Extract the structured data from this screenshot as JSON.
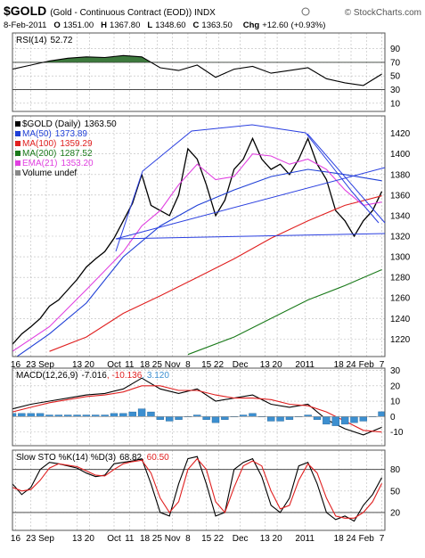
{
  "header": {
    "symbol": "$GOLD",
    "description": "(Gold - Continuous Contract (EOD)) INDX",
    "source": "© StockCharts.com",
    "date": "8-Feb-2011",
    "quote": [
      {
        "key": "O",
        "value": 1351,
        "label": "1351.00"
      },
      {
        "key": "H",
        "value": 1367.8,
        "label": "1367.80"
      },
      {
        "key": "L",
        "value": 1348.6,
        "label": "1348.60"
      },
      {
        "key": "C",
        "value": 1363.5,
        "label": "1363.50"
      }
    ],
    "change": {
      "key": "Chg",
      "value": 12.6,
      "label": "+12.60",
      "percent": {
        "value": 0.93,
        "label": "(+0.93%)"
      }
    }
  },
  "chart_data": [
    {
      "type": "line",
      "title": "RSI(14)",
      "xlim": [
        0,
        121
      ],
      "ylim": [
        -2,
        113
      ],
      "yticks": [
        10,
        30,
        50,
        70,
        90
      ],
      "levels": [
        30,
        70
      ],
      "grid": true,
      "series": [
        {
          "color": "#000000",
          "fill": "#3d7a3d",
          "fill_above": 70,
          "x": [
            0,
            6,
            12,
            18,
            24,
            30,
            36,
            42,
            48,
            54,
            60,
            66,
            72,
            78,
            84,
            90,
            96,
            102,
            108,
            114,
            120
          ],
          "values": [
            60,
            66,
            72,
            76,
            78,
            77,
            80,
            78,
            62,
            58,
            66,
            48,
            60,
            64,
            54,
            58,
            62,
            46,
            40,
            36,
            52.72
          ]
        }
      ]
    },
    {
      "type": "line",
      "xlim": [
        0,
        121
      ],
      "ylim": [
        1203,
        1437
      ],
      "grid": true,
      "yticks": [
        1220,
        1240,
        1260,
        1280,
        1300,
        1320,
        1340,
        1360,
        1380,
        1400,
        1420
      ],
      "xticks": [
        {
          "value": 1,
          "label": "16"
        },
        {
          "value": 6,
          "label": "23"
        },
        {
          "value": 11,
          "label": "Sep"
        },
        {
          "value": 21,
          "label": "13"
        },
        {
          "value": 25,
          "label": "20"
        },
        {
          "value": 33,
          "label": "Oct"
        },
        {
          "value": 38,
          "label": "11"
        },
        {
          "value": 43,
          "label": "18"
        },
        {
          "value": 47,
          "label": "25"
        },
        {
          "value": 52,
          "label": "Nov"
        },
        {
          "value": 57,
          "label": "8"
        },
        {
          "value": 63,
          "label": "15"
        },
        {
          "value": 67,
          "label": "22"
        },
        {
          "value": 74,
          "label": "Dec"
        },
        {
          "value": 82,
          "label": "13"
        },
        {
          "value": 86,
          "label": "20"
        },
        {
          "value": 95,
          "label": "2011"
        },
        {
          "value": 106,
          "label": "18"
        },
        {
          "value": 110,
          "label": "24"
        },
        {
          "value": 115,
          "label": "Feb"
        },
        {
          "value": 120,
          "label": "7"
        }
      ],
      "series": [
        {
          "name": "$GOLD (Daily)",
          "color": "#000000",
          "readout": {
            "value": 1363.5,
            "label": "1363.50"
          },
          "x": [
            0,
            3,
            6,
            9,
            12,
            15,
            18,
            21,
            24,
            27,
            30,
            33,
            36,
            39,
            42,
            45,
            48,
            51,
            54,
            57,
            60,
            63,
            66,
            69,
            72,
            75,
            78,
            81,
            84,
            87,
            90,
            93,
            96,
            99,
            102,
            105,
            108,
            111,
            114,
            117,
            120
          ],
          "values": [
            1215,
            1225,
            1232,
            1240,
            1252,
            1258,
            1268,
            1278,
            1290,
            1298,
            1305,
            1318,
            1335,
            1352,
            1380,
            1350,
            1345,
            1340,
            1360,
            1405,
            1395,
            1370,
            1340,
            1355,
            1385,
            1395,
            1415,
            1395,
            1385,
            1390,
            1380,
            1395,
            1415,
            1390,
            1375,
            1345,
            1335,
            1320,
            1335,
            1345,
            1363.5
          ]
        },
        {
          "name": "MA(50)",
          "color": "#1f3fd6",
          "x": [
            0,
            12,
            24,
            36,
            48,
            60,
            72,
            84,
            96,
            108,
            120
          ],
          "values": [
            1200,
            1225,
            1255,
            1300,
            1330,
            1350,
            1365,
            1378,
            1385,
            1380,
            1373.89
          ]
        },
        {
          "name": "MA(100)",
          "color": "#e02020",
          "x": [
            12,
            24,
            36,
            48,
            60,
            72,
            84,
            96,
            108,
            120
          ],
          "values": [
            1208,
            1222,
            1245,
            1262,
            1280,
            1298,
            1318,
            1335,
            1350,
            1359.29
          ]
        },
        {
          "name": "MA(200)",
          "color": "#1a7a1a",
          "x": [
            57,
            72,
            84,
            96,
            108,
            120
          ],
          "values": [
            1205,
            1222,
            1240,
            1258,
            1272,
            1287.52
          ]
        },
        {
          "name": "EMA(21)",
          "color": "#e040e0",
          "readout": {
            "value": 1353.2,
            "label": "1353.20"
          },
          "x": [
            0,
            12,
            24,
            36,
            42,
            48,
            54,
            60,
            66,
            72,
            78,
            84,
            90,
            96,
            102,
            108,
            114,
            120
          ],
          "values": [
            1208,
            1232,
            1268,
            1305,
            1330,
            1345,
            1370,
            1390,
            1375,
            1378,
            1400,
            1398,
            1390,
            1395,
            1385,
            1365,
            1350,
            1353.2
          ]
        }
      ],
      "legend_extra": "Volume undef"
    },
    {
      "type": "line",
      "title": "MACD(12,26,9)",
      "readout_separator": ", ",
      "xlim": [
        0,
        121
      ],
      "ylim": [
        -19,
        31.5
      ],
      "yticks": [
        -10,
        0,
        10,
        20,
        30
      ],
      "grid": true,
      "series": [
        {
          "color": "#000000",
          "x": [
            0,
            6,
            12,
            18,
            24,
            30,
            36,
            42,
            48,
            54,
            60,
            66,
            72,
            78,
            84,
            90,
            96,
            102,
            108,
            114,
            120
          ],
          "values": [
            5,
            8,
            10,
            12,
            14,
            15,
            18,
            25,
            18,
            15,
            18,
            10,
            12,
            14,
            8,
            6,
            8,
            -2,
            -8,
            -12,
            -7.016
          ]
        },
        {
          "color": "#e02020",
          "x": [
            0,
            6,
            12,
            18,
            24,
            30,
            36,
            42,
            48,
            54,
            60,
            66,
            72,
            78,
            84,
            90,
            96,
            102,
            108,
            114,
            120
          ],
          "values": [
            3,
            6,
            9,
            11,
            13,
            14,
            16,
            20,
            20,
            17,
            17,
            14,
            12,
            12,
            11,
            8,
            7,
            3,
            -3,
            -9,
            -10.136
          ]
        },
        {
          "type": "bar",
          "color": "#3c8fd0",
          "readout": {
            "value": 3.12,
            "label": "3.120"
          },
          "x": [
            0,
            3,
            6,
            9,
            12,
            15,
            18,
            21,
            24,
            27,
            30,
            33,
            36,
            39,
            42,
            45,
            48,
            51,
            54,
            57,
            60,
            63,
            66,
            69,
            72,
            75,
            78,
            81,
            84,
            87,
            90,
            93,
            96,
            99,
            102,
            105,
            108,
            111,
            114,
            117,
            120
          ],
          "values": [
            2,
            2,
            2,
            2,
            1,
            1,
            1,
            1,
            1,
            1,
            1,
            2,
            2,
            3,
            5,
            3,
            -2,
            -3,
            -2,
            0,
            1,
            -2,
            -4,
            -2,
            0,
            1,
            2,
            0,
            -3,
            -3,
            -2,
            0,
            1,
            -2,
            -5,
            -6,
            -5,
            -4,
            -3,
            0,
            3.12
          ]
        }
      ]
    },
    {
      "type": "line",
      "title": "Slow STO %K(14) %D(3)",
      "readout_separator": ", ",
      "xlim": [
        0,
        121
      ],
      "ylim": [
        -5,
        107
      ],
      "yticks": [
        20,
        50,
        80
      ],
      "levels": [
        20,
        80
      ],
      "grid": true,
      "xticks": [
        {
          "value": 1,
          "label": "16"
        },
        {
          "value": 6,
          "label": "23"
        },
        {
          "value": 11,
          "label": "Sep"
        },
        {
          "value": 21,
          "label": "13"
        },
        {
          "value": 25,
          "label": "20"
        },
        {
          "value": 33,
          "label": "Oct"
        },
        {
          "value": 38,
          "label": "11"
        },
        {
          "value": 43,
          "label": "18"
        },
        {
          "value": 47,
          "label": "25"
        },
        {
          "value": 52,
          "label": "Nov"
        },
        {
          "value": 57,
          "label": "8"
        },
        {
          "value": 63,
          "label": "15"
        },
        {
          "value": 67,
          "label": "22"
        },
        {
          "value": 74,
          "label": "Dec"
        },
        {
          "value": 82,
          "label": "13"
        },
        {
          "value": 86,
          "label": "20"
        },
        {
          "value": 95,
          "label": "2011"
        },
        {
          "value": 106,
          "label": "18"
        },
        {
          "value": 110,
          "label": "24"
        },
        {
          "value": 115,
          "label": "Feb"
        },
        {
          "value": 120,
          "label": "7"
        }
      ],
      "series": [
        {
          "color": "#000000",
          "x": [
            0,
            3,
            6,
            9,
            12,
            15,
            18,
            21,
            24,
            27,
            30,
            33,
            36,
            39,
            42,
            45,
            48,
            51,
            54,
            57,
            60,
            63,
            66,
            69,
            72,
            75,
            78,
            81,
            84,
            87,
            90,
            93,
            96,
            99,
            102,
            105,
            108,
            111,
            114,
            117,
            120
          ],
          "values": [
            60,
            45,
            55,
            80,
            90,
            88,
            85,
            82,
            75,
            70,
            72,
            88,
            90,
            92,
            95,
            60,
            20,
            15,
            60,
            95,
            98,
            60,
            15,
            20,
            80,
            90,
            95,
            70,
            30,
            20,
            40,
            85,
            90,
            60,
            20,
            10,
            15,
            8,
            30,
            45,
            68.82
          ]
        },
        {
          "color": "#e02020",
          "readout": {
            "value": 60.5,
            "label": "60.50"
          },
          "x": [
            0,
            3,
            6,
            9,
            12,
            15,
            18,
            21,
            24,
            27,
            30,
            33,
            36,
            39,
            42,
            45,
            48,
            51,
            54,
            57,
            60,
            63,
            66,
            69,
            72,
            75,
            78,
            81,
            84,
            87,
            90,
            93,
            96,
            99,
            102,
            105,
            108,
            111,
            114,
            117,
            120
          ],
          "values": [
            55,
            50,
            52,
            65,
            82,
            88,
            86,
            84,
            78,
            72,
            71,
            80,
            88,
            91,
            93,
            75,
            40,
            20,
            35,
            80,
            95,
            80,
            35,
            20,
            55,
            85,
            92,
            85,
            50,
            25,
            30,
            65,
            88,
            75,
            40,
            15,
            12,
            12,
            20,
            35,
            60.5
          ]
        }
      ]
    }
  ]
}
